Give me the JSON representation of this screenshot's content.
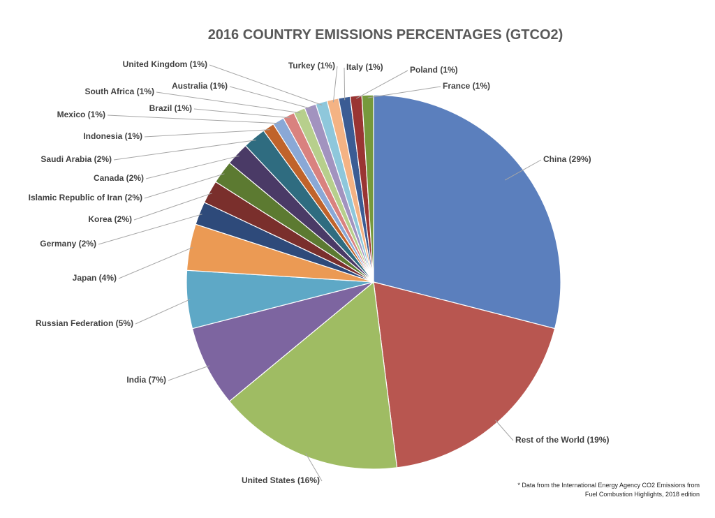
{
  "chart_data": {
    "type": "pie",
    "title": "2016 COUNTRY EMISSIONS PERCENTAGES (GTCO2)",
    "start_angle_deg": 0,
    "direction": "clockwise",
    "slices": [
      {
        "label": "China (29%)",
        "value": 29,
        "color": "#5b7fbd"
      },
      {
        "label": "Rest of the World (19%)",
        "value": 19,
        "color": "#b85650"
      },
      {
        "label": "United States (16%)",
        "value": 16,
        "color": "#9fbc63"
      },
      {
        "label": "India (7%)",
        "value": 7,
        "color": "#7d65a0"
      },
      {
        "label": "Russian Federation (5%)",
        "value": 5,
        "color": "#5ea8c6"
      },
      {
        "label": "Japan (4%)",
        "value": 4,
        "color": "#eb9a54"
      },
      {
        "label": "Germany (2%)",
        "value": 2,
        "color": "#2e4a7a"
      },
      {
        "label": "Korea (2%)",
        "value": 2,
        "color": "#7a2f2c"
      },
      {
        "label": "Islamic Republic of Iran (2%)",
        "value": 2,
        "color": "#5c7a31"
      },
      {
        "label": "Canada (2%)",
        "value": 2,
        "color": "#4a3a66"
      },
      {
        "label": "Saudi Arabia (2%)",
        "value": 2,
        "color": "#2f6c80"
      },
      {
        "label": "Indonesia (1%)",
        "value": 1,
        "color": "#c0632b"
      },
      {
        "label": "Mexico (1%)",
        "value": 1,
        "color": "#8aa8d6"
      },
      {
        "label": "Brazil (1%)",
        "value": 1,
        "color": "#d9827f"
      },
      {
        "label": "South Africa (1%)",
        "value": 1,
        "color": "#b7cf8c"
      },
      {
        "label": "Australia (1%)",
        "value": 1,
        "color": "#a293bf"
      },
      {
        "label": "United Kingdom (1%)",
        "value": 1,
        "color": "#8ec7db"
      },
      {
        "label": "Turkey (1%)",
        "value": 1,
        "color": "#f4b384"
      },
      {
        "label": "Italy (1%)",
        "value": 1,
        "color": "#3b5c94"
      },
      {
        "label": "Poland (1%)",
        "value": 1,
        "color": "#9a3533"
      },
      {
        "label": "France (1%)",
        "value": 1,
        "color": "#76993c"
      }
    ],
    "footnote": [
      "* Data from the International Energy Agency CO2 Emissions from",
      "Fuel Combustion Highlights, 2018 edition"
    ]
  }
}
